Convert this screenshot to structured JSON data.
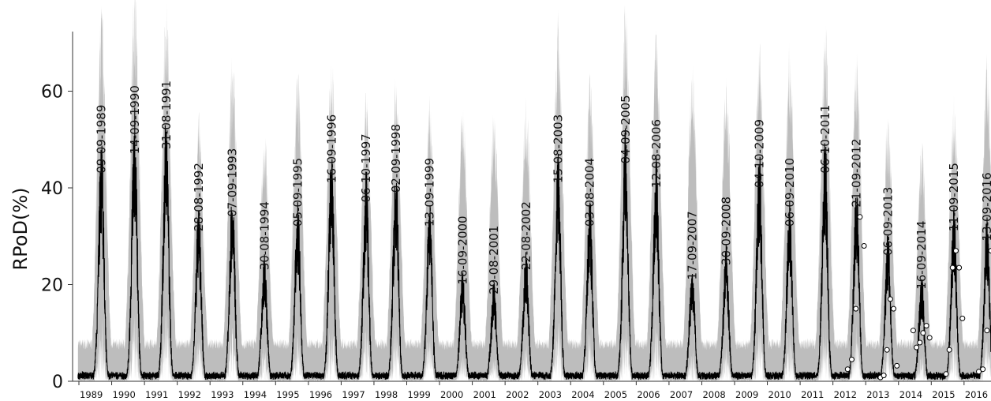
{
  "chart_data": {
    "type": "line",
    "ylabel": "RPoD(%)",
    "xlabel": "",
    "ylim": [
      0,
      70
    ],
    "yticks": [
      0,
      20,
      40,
      60
    ],
    "years": [
      "1989",
      "1990",
      "1991",
      "1992",
      "1993",
      "1994",
      "1995",
      "1996",
      "1997",
      "1998",
      "1999",
      "2000",
      "2001",
      "2002",
      "2003",
      "2004",
      "2005",
      "2006",
      "2007",
      "2008",
      "2009",
      "2010",
      "2011",
      "2012",
      "2013",
      "2014",
      "2015",
      "2016"
    ],
    "peaks": [
      {
        "date": "09-09-1989",
        "value": 42
      },
      {
        "date": "14-09-1990",
        "value": 46
      },
      {
        "date": "31-08-1991",
        "value": 47
      },
      {
        "date": "28-08-1992",
        "value": 30
      },
      {
        "date": "07-09-1993",
        "value": 33
      },
      {
        "date": "30-08-1994",
        "value": 22
      },
      {
        "date": "05-09-1995",
        "value": 31
      },
      {
        "date": "16-09-1996",
        "value": 40
      },
      {
        "date": "06-10-1997",
        "value": 36
      },
      {
        "date": "02-09-1998",
        "value": 38
      },
      {
        "date": "13-09-1999",
        "value": 31
      },
      {
        "date": "16-09-2000",
        "value": 19
      },
      {
        "date": "29-08-2001",
        "value": 17
      },
      {
        "date": "22-08-2002",
        "value": 22
      },
      {
        "date": "15-08-2003",
        "value": 40
      },
      {
        "date": "03-08-2004",
        "value": 31
      },
      {
        "date": "04-09-2005",
        "value": 44
      },
      {
        "date": "12-08-2006",
        "value": 39
      },
      {
        "date": "17-09-2007",
        "value": 20
      },
      {
        "date": "30-09-2008",
        "value": 23
      },
      {
        "date": "04-10-2009",
        "value": 39
      },
      {
        "date": "06-09-2010",
        "value": 31
      },
      {
        "date": "06-10-2011",
        "value": 42
      },
      {
        "date": "21-09-2012",
        "value": 35
      },
      {
        "date": "06-09-2013",
        "value": 25
      },
      {
        "date": "16-09-2014",
        "value": 18
      },
      {
        "date": "11-09-2015",
        "value": 30
      },
      {
        "date": "13-09-2016",
        "value": 28
      }
    ],
    "band_max": [
      72,
      76,
      72,
      51,
      62,
      48,
      60,
      62,
      57,
      59,
      54,
      53,
      53,
      54,
      70,
      59,
      72,
      67,
      61,
      58,
      66,
      65,
      68,
      63,
      51,
      46,
      55,
      63
    ],
    "observations": [
      {
        "year": 2012,
        "values": [
          2.5,
          4.5,
          15,
          34,
          28
        ]
      },
      {
        "year": 2013,
        "values": [
          0.8,
          1.2,
          6.5,
          17,
          15,
          3.2
        ]
      },
      {
        "year": 2014,
        "values": [
          10.5,
          7,
          8,
          10,
          11.5,
          9
        ]
      },
      {
        "year": 2015,
        "values": [
          1.5,
          6.5,
          23.5,
          27,
          23.5,
          13
        ]
      },
      {
        "year": 2016,
        "values": [
          2,
          2.5,
          10.5,
          27,
          28
        ]
      }
    ],
    "colors": {
      "band": "#bdbdbd",
      "line": "#000000",
      "points_fill": "#ffffff",
      "points_stroke": "#000000"
    }
  }
}
